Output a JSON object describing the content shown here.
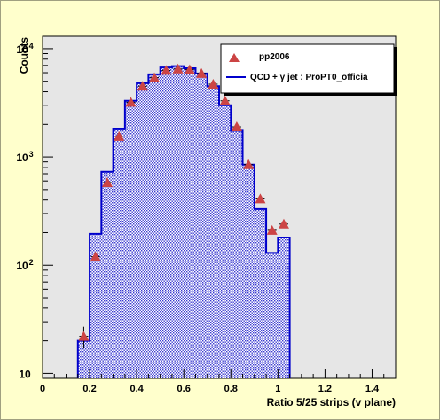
{
  "chart_data": {
    "type": "histogram",
    "title": "",
    "xlabel": "Ratio 5/25 strips (v plane)",
    "ylabel": "Counts",
    "xlim": [
      0,
      1.5
    ],
    "ylim": [
      9,
      13000
    ],
    "yscale": "log",
    "grid": false,
    "legend_position": "top-right",
    "x_ticks": [
      "0",
      "0.2",
      "0.4",
      "0.6",
      "0.8",
      "1",
      "1.2",
      "1.4"
    ],
    "y_ticks": [
      {
        "base": "10",
        "exp": ""
      },
      {
        "base": "10",
        "exp": "2"
      },
      {
        "base": "10",
        "exp": "3"
      },
      {
        "base": "10",
        "exp": "4"
      }
    ],
    "colors": {
      "background": "#ffffcc",
      "plot_background": "#e6e6e6",
      "histogram_line": "#0000cc",
      "histogram_fill": "#6a6ad8",
      "marker": "#cc4444"
    },
    "series": [
      {
        "name": "pp2006",
        "kind": "points",
        "marker": "triangle-up",
        "x": [
          0.175,
          0.225,
          0.275,
          0.325,
          0.375,
          0.425,
          0.475,
          0.525,
          0.575,
          0.625,
          0.675,
          0.725,
          0.775,
          0.825,
          0.875,
          0.925,
          0.975,
          1.025
        ],
        "y": [
          22,
          120,
          580,
          1550,
          3200,
          4500,
          5400,
          6300,
          6500,
          6400,
          5900,
          4700,
          3300,
          1900,
          850,
          410,
          210,
          240
        ],
        "yerr": [
          5,
          11,
          24,
          39,
          57,
          67,
          73,
          79,
          81,
          80,
          77,
          69,
          57,
          44,
          29,
          20,
          14,
          15
        ]
      },
      {
        "name": "QCD + γ jet : ProPT0_officia",
        "kind": "histogram",
        "bin_edges": [
          0.15,
          0.2,
          0.25,
          0.3,
          0.35,
          0.4,
          0.45,
          0.5,
          0.55,
          0.6,
          0.65,
          0.7,
          0.75,
          0.8,
          0.85,
          0.9,
          0.95,
          1.0,
          1.05
        ],
        "values": [
          20,
          195,
          730,
          1800,
          3300,
          4800,
          5800,
          6700,
          6900,
          6600,
          5900,
          4500,
          3000,
          1750,
          850,
          330,
          130,
          180
        ]
      }
    ],
    "legend": [
      {
        "label": "pp2006",
        "symbol": "triangle"
      },
      {
        "label": "QCD + γ jet : ProPT0_officia",
        "symbol": "line"
      }
    ]
  }
}
